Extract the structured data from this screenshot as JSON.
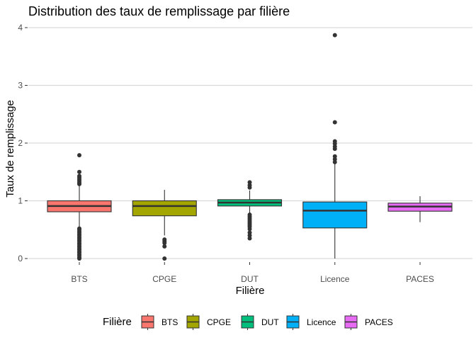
{
  "chart_data": {
    "type": "boxplot",
    "title": "Distribution des taux de remplissage par filière",
    "xlabel": "Filière",
    "ylabel": "Taux de remplissage",
    "ylim": [
      -0.1,
      4.1
    ],
    "y_ticks": [
      "0",
      "1",
      "2",
      "3",
      "4"
    ],
    "grid": true,
    "legend": {
      "title": "Filière",
      "position": "bottom"
    },
    "categories": [
      "BTS",
      "CPGE",
      "DUT",
      "Licence",
      "PACES"
    ],
    "series": [
      {
        "name": "BTS",
        "color": "#F8766D",
        "whisker_low": 0.52,
        "q1": 0.81,
        "median": 0.91,
        "q3": 1.0,
        "whisker_high": 1.27,
        "outliers": [
          1.79,
          1.5,
          1.43,
          1.4,
          1.37,
          1.34,
          1.31,
          1.29,
          0.52,
          0.5,
          0.47,
          0.45,
          0.42,
          0.4,
          0.37,
          0.35,
          0.32,
          0.3,
          0.27,
          0.25,
          0.22,
          0.2,
          0.17,
          0.15,
          0.12,
          0.1,
          0.07,
          0.05,
          0.02,
          0.0
        ]
      },
      {
        "name": "CPGE",
        "color": "#A3A500",
        "whisker_low": 0.4,
        "q1": 0.74,
        "median": 0.91,
        "q3": 1.0,
        "whisker_high": 1.19,
        "outliers": [
          0.33,
          0.3,
          0.27,
          0.21,
          0.0
        ]
      },
      {
        "name": "DUT",
        "color": "#00BF7D",
        "whisker_low": 0.76,
        "q1": 0.91,
        "median": 0.97,
        "q3": 1.02,
        "whisker_high": 1.18,
        "outliers": [
          1.32,
          1.27,
          1.23,
          0.76,
          0.73,
          0.7,
          0.67,
          0.64,
          0.61,
          0.58,
          0.55,
          0.51,
          0.45,
          0.4,
          0.35
        ]
      },
      {
        "name": "Licence",
        "color": "#00B0F6",
        "whisker_low": 0.0,
        "q1": 0.53,
        "median": 0.83,
        "q3": 0.98,
        "whisker_high": 1.65,
        "outliers": [
          3.87,
          2.36,
          2.03,
          1.99,
          1.94,
          1.9,
          1.77,
          1.72,
          1.67
        ]
      },
      {
        "name": "PACES",
        "color": "#E76BF3",
        "whisker_low": 0.63,
        "q1": 0.82,
        "median": 0.9,
        "q3": 0.96,
        "whisker_high": 1.08,
        "outliers": []
      }
    ]
  }
}
